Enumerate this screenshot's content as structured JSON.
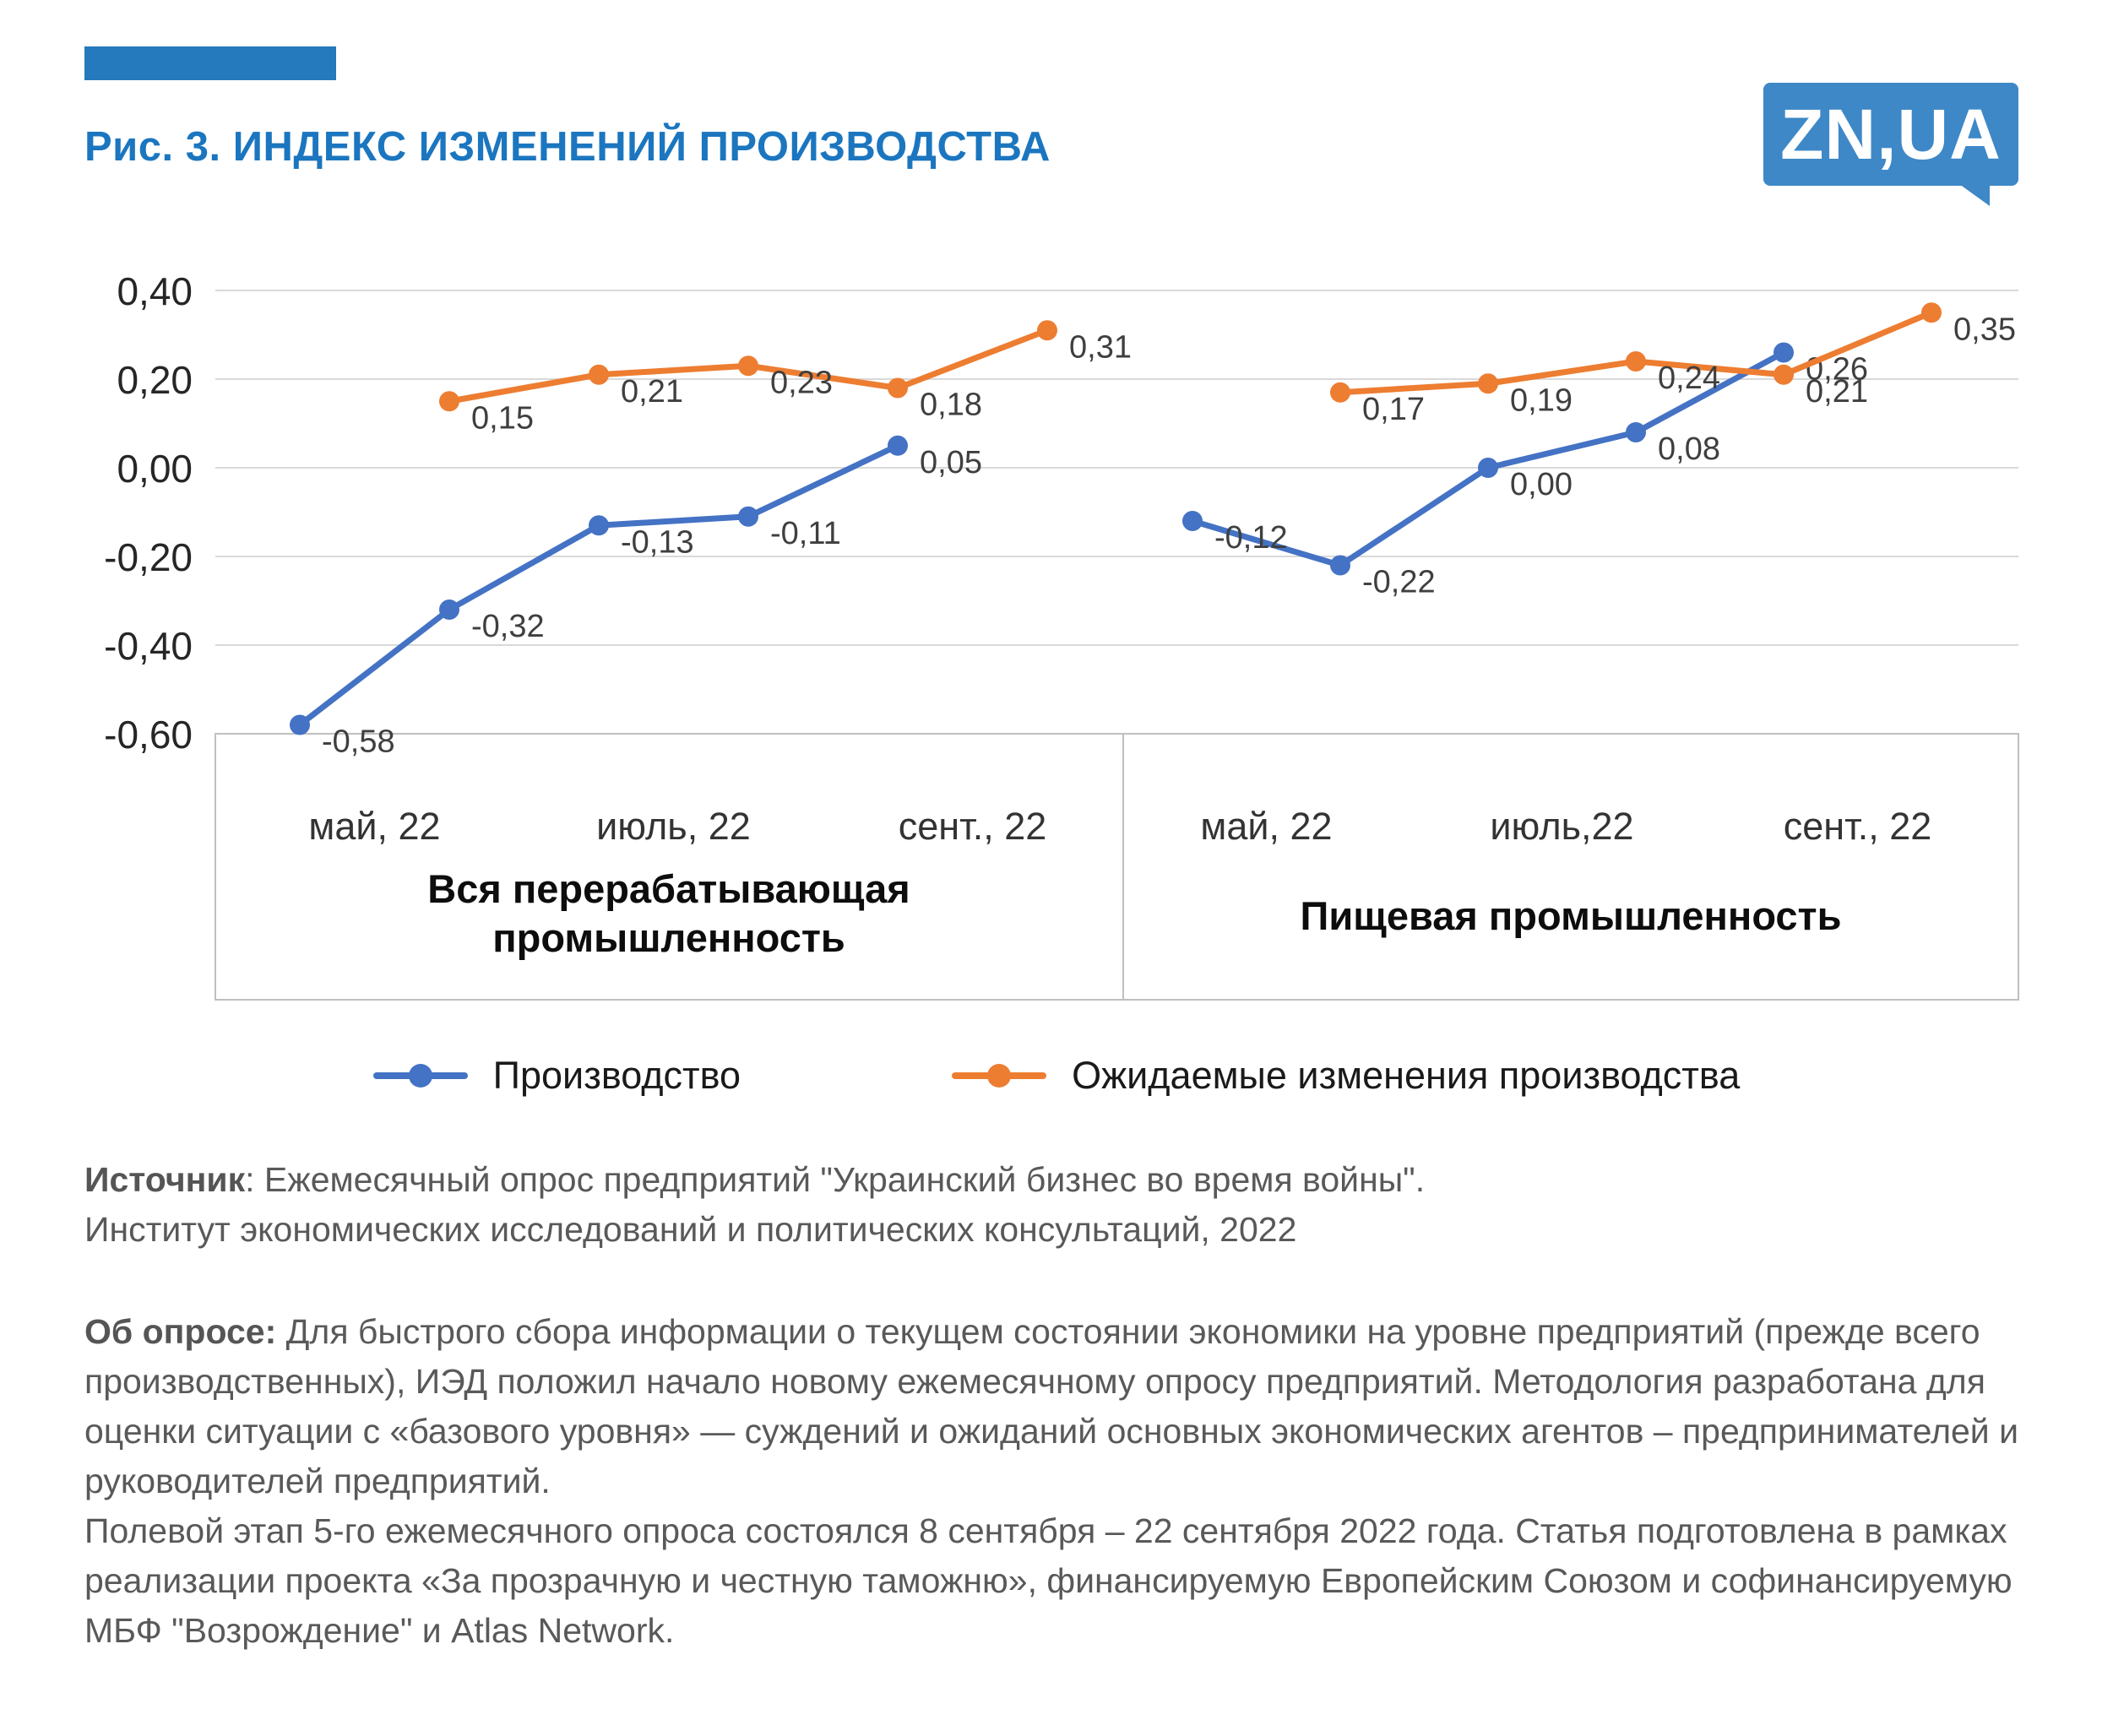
{
  "header": {
    "title": "Рис. 3. ИНДЕКС ИЗМЕНЕНИЙ ПРОИЗВОДСТВА",
    "logo": "ZN,UA",
    "accent_color": "#2579bd",
    "logo_bg": "#3e88c7",
    "title_color": "#1b76bf"
  },
  "chart_data": {
    "type": "line",
    "title": "Рис. 3. ИНДЕКС ИЗМЕНЕНИЙ ПРОИЗВОДСТВА",
    "ylim": [
      -0.6,
      0.4
    ],
    "grid": true,
    "legend_position": "bottom",
    "yticks": [
      {
        "value": 0.4,
        "label": "0,40"
      },
      {
        "value": 0.2,
        "label": "0,20"
      },
      {
        "value": 0.0,
        "label": "0,00"
      },
      {
        "value": -0.2,
        "label": "-0,20"
      },
      {
        "value": -0.4,
        "label": "-0,40"
      },
      {
        "value": -0.6,
        "label": "-0,60"
      }
    ],
    "panels": [
      {
        "label": "Вся перерабатывающая промышленность",
        "label_lines": [
          "Вся перерабатывающая",
          "промышленность"
        ],
        "x_tick_labels": [
          "май, 22",
          "июль, 22",
          "сент., 22"
        ],
        "series": [
          {
            "name": "Производство",
            "color": "#4472c4",
            "x": [
              0,
              1,
              2,
              3,
              4
            ],
            "values": [
              -0.58,
              -0.32,
              -0.13,
              -0.11,
              0.05
            ],
            "labels": [
              "-0,58",
              "-0,32",
              "-0,13",
              "-0,11",
              "0,05"
            ]
          },
          {
            "name": "Ожидаемые изменения производства",
            "color": "#ed7d31",
            "x": [
              1,
              2,
              3,
              4,
              5
            ],
            "values": [
              0.15,
              0.21,
              0.23,
              0.18,
              0.31
            ],
            "labels": [
              "0,15",
              "0,21",
              "0,23",
              "0,18",
              "0,31"
            ]
          }
        ]
      },
      {
        "label": "Пищевая промышленность",
        "label_lines": [
          "Пищевая промышленность"
        ],
        "x_tick_labels": [
          "май, 22",
          "июль,22",
          "сент., 22"
        ],
        "series": [
          {
            "name": "Производство",
            "color": "#4472c4",
            "x": [
              0,
              1,
              2,
              3,
              4
            ],
            "values": [
              -0.12,
              -0.22,
              0.0,
              0.08,
              0.26
            ],
            "labels": [
              "-0,12",
              "-0,22",
              "0,00",
              "0,08",
              "0,26"
            ]
          },
          {
            "name": "Ожидаемые изменения производства",
            "color": "#ed7d31",
            "x": [
              1,
              2,
              3,
              4,
              5
            ],
            "values": [
              0.17,
              0.19,
              0.24,
              0.21,
              0.35
            ],
            "labels": [
              "0,17",
              "0,19",
              "0,24",
              "0,21",
              "0,35"
            ]
          }
        ]
      }
    ],
    "legend": [
      {
        "label": "Производство",
        "color": "#4472c4"
      },
      {
        "label": "Ожидаемые изменения производства",
        "color": "#ed7d31"
      }
    ]
  },
  "source": {
    "label": "Источник",
    "line1": ": Ежемесячный опрос предприятий \"Украинский бизнес во время войны\".",
    "line2": "Институт экономических исследований и политических консультаций, 2022"
  },
  "about": {
    "label": "Об опросе:",
    "para1": " Для быстрого сбора информации о текущем состоянии экономики на уровне предприятий (прежде всего производственных), ИЭД положил начало новому ежемесячному опросу предприятий. Методология разработана для оценки ситуации с «базового уровня» — суждений и ожиданий основных экономических агентов – предпринимателей и руководителей предприятий.",
    "para2": "Полевой этап 5-го ежемесячного опроса состоялся 8 сентября – 22 сентября 2022 года. Статья подготовлена в рамках реализации проекта «За прозрачную и честную таможню», финансируемую Европейским Союзом и софинансируемую МБФ \"Возрождение\" и Atlas Network."
  }
}
